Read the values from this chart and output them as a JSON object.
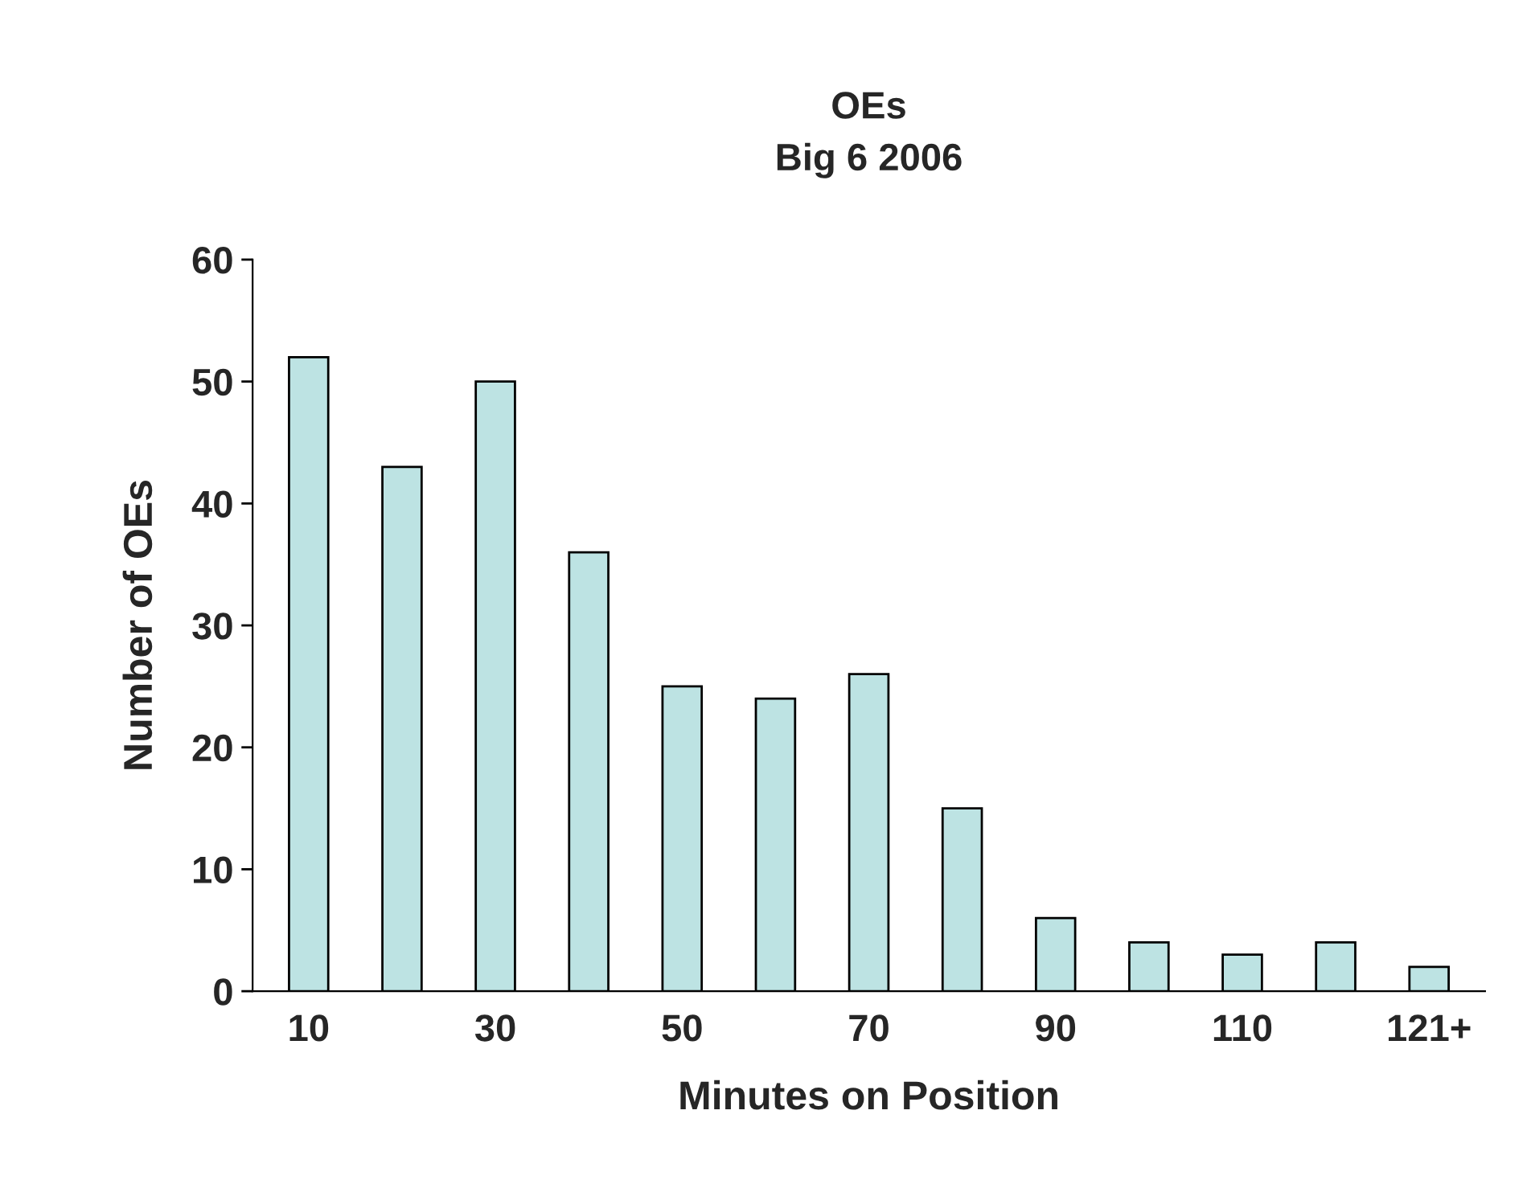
{
  "chart_data": {
    "type": "bar",
    "title": "OEs\nBig 6 2006",
    "xlabel": "Minutes on Position",
    "ylabel": "Number of OEs",
    "categories": [
      "10",
      null,
      "30",
      null,
      "50",
      null,
      "70",
      null,
      "90",
      null,
      "110",
      null,
      "121+"
    ],
    "values": [
      52,
      43,
      50,
      36,
      25,
      24,
      26,
      15,
      6,
      4,
      3,
      4,
      2
    ],
    "color": "#bde3e3",
    "ylim": [
      0,
      60
    ],
    "yticks": [
      0,
      10,
      20,
      30,
      40,
      50,
      60
    ],
    "grid": false,
    "legend": false
  }
}
